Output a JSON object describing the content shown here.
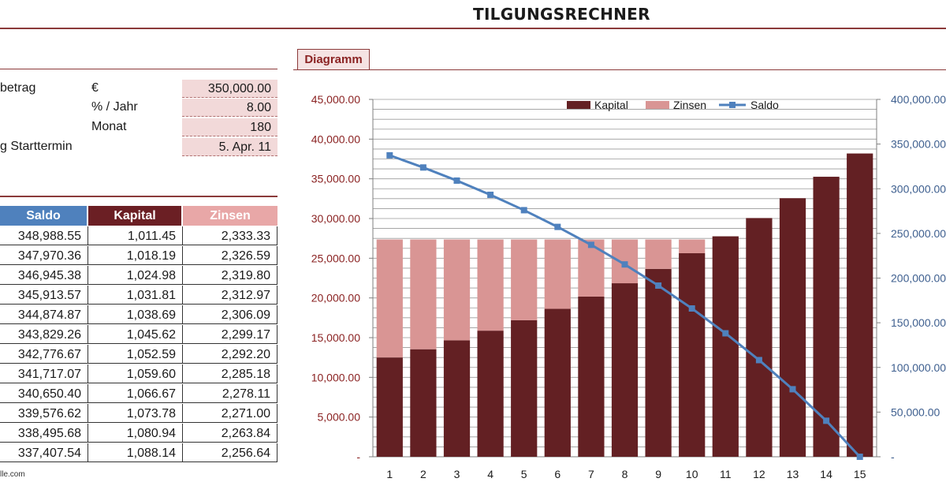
{
  "page": {
    "title": "TILGUNGSRECHNER",
    "footer": "lle.com"
  },
  "params": [
    {
      "label": "betrag",
      "unit": "€",
      "value": "350,000.00"
    },
    {
      "label": "",
      "unit": "% / Jahr",
      "value": "8.00"
    },
    {
      "label": "",
      "unit": "Monat",
      "value": "180"
    },
    {
      "label": "g Starttermin",
      "unit": "",
      "value": "5. Apr. 11"
    }
  ],
  "table": {
    "headers": [
      "Saldo",
      "Kapital",
      "Zinsen"
    ],
    "rows": [
      [
        "348,988.55",
        "1,011.45",
        "2,333.33"
      ],
      [
        "347,970.36",
        "1,018.19",
        "2,326.59"
      ],
      [
        "346,945.38",
        "1,024.98",
        "2,319.80"
      ],
      [
        "345,913.57",
        "1,031.81",
        "2,312.97"
      ],
      [
        "344,874.87",
        "1,038.69",
        "2,306.09"
      ],
      [
        "343,829.26",
        "1,045.62",
        "2,299.17"
      ],
      [
        "342,776.67",
        "1,052.59",
        "2,292.20"
      ],
      [
        "341,717.07",
        "1,059.60",
        "2,285.18"
      ],
      [
        "340,650.40",
        "1,066.67",
        "2,278.11"
      ],
      [
        "339,576.62",
        "1,073.78",
        "2,271.00"
      ],
      [
        "338,495.68",
        "1,080.94",
        "2,263.84"
      ],
      [
        "337,407.54",
        "1,088.14",
        "2,256.64"
      ]
    ]
  },
  "diagram": {
    "tab_label": "Diagramm"
  },
  "chart_data": {
    "type": "bar",
    "categories": [
      "1",
      "2",
      "3",
      "4",
      "5",
      "6",
      "7",
      "8",
      "9",
      "10",
      "11",
      "12",
      "13",
      "14",
      "15"
    ],
    "series": [
      {
        "name": "Kapital",
        "kind": "bar",
        "stacked": true,
        "axis": "left",
        "color": "#632023",
        "values": [
          12500,
          13540,
          14660,
          15880,
          17200,
          18630,
          20170,
          21850,
          23660,
          25630,
          27760,
          30060,
          32560,
          35260,
          38190
        ]
      },
      {
        "name": "Zinsen",
        "kind": "bar",
        "stacked": true,
        "axis": "left",
        "color": "#d99594",
        "values": [
          14860,
          13820,
          12700,
          11480,
          10160,
          8730,
          7190,
          5510,
          3700,
          1730,
          0,
          0,
          0,
          0,
          0
        ]
      },
      {
        "name": "Saldo",
        "kind": "line",
        "axis": "right",
        "color": "#4f81bd",
        "values": [
          337400,
          323800,
          309100,
          293200,
          276000,
          257300,
          237200,
          215300,
          191600,
          166000,
          138200,
          108200,
          75600,
          40300,
          0
        ]
      }
    ],
    "ylim_left": [
      0,
      45000
    ],
    "ylim_right": [
      0,
      400000
    ],
    "yticks_left": [
      "-",
      "5,000.00",
      "10,000.00",
      "15,000.00",
      "20,000.00",
      "25,000.00",
      "30,000.00",
      "35,000.00",
      "40,000.00",
      "45,000.00"
    ],
    "yticks_right": [
      "-",
      "50,000.00",
      "100,000.00",
      "150,000.00",
      "200,000.00",
      "250,000.00",
      "300,000.00",
      "350,000.00",
      "400,000.00"
    ],
    "legend": [
      "Kapital",
      "Zinsen",
      "Saldo"
    ],
    "legend_position": "top",
    "grid": true
  }
}
